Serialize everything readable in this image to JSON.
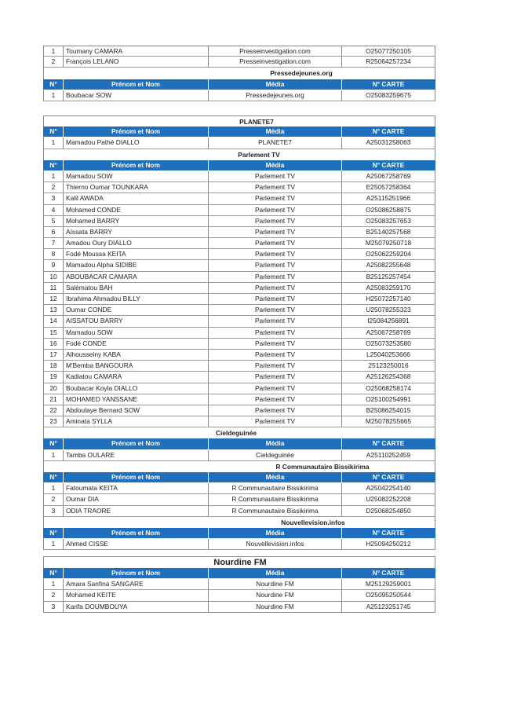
{
  "headers": {
    "no": "N°",
    "name": "Prénom et Nom",
    "media": "Média",
    "card": "N° CARTE"
  },
  "tables": [
    {
      "sections": [
        {
          "title": null,
          "show_header": false,
          "rows": [
            [
              "1",
              "Toumany CAMARA",
              "Presseinvestigation.com",
              "O25077250105"
            ],
            [
              "2",
              "François LELANO",
              "Presseinvestigation.com",
              "R25064257234"
            ]
          ]
        },
        {
          "title": "Pressedejeunes.org",
          "show_header": true,
          "rows": [
            [
              "1",
              "Boubacar SOW",
              "Pressedejeunes.org",
              "O25083259675"
            ]
          ]
        }
      ]
    },
    {
      "sections": [
        {
          "title": "PLANETE7",
          "show_header": true,
          "rows": [
            [
              "1",
              "Mamadou Pathé DIALLO",
              "PLANETE7",
              "A25031258063"
            ]
          ]
        },
        {
          "title": "Parlement TV",
          "show_header": true,
          "rows": [
            [
              "1",
              "Mamadou SOW",
              "Parlement TV",
              "A25067258769"
            ],
            [
              "2",
              "Thierno Oumar TOUNKARA",
              "Parlement TV",
              "E25057258364"
            ],
            [
              "3",
              "Kalil AWADA",
              "Parlement TV",
              "A25115251966"
            ],
            [
              "4",
              "Mohamed CONDE",
              "Parlement TV",
              "O25086258875"
            ],
            [
              "5",
              "Mohamed BARRY",
              "Parlement TV",
              "O25083257653"
            ],
            [
              "6",
              "Aïssata BARRY",
              "Parlement TV",
              "B25140257568"
            ],
            [
              "7",
              "Amadou Oury DIALLO",
              "Parlement TV",
              "M25079250718"
            ],
            [
              "8",
              "Fodé Moussa KEITA",
              "Parlement TV",
              "O25062259204"
            ],
            [
              "9",
              "Mamadou Alpha SIDIBE",
              "Parlement TV",
              "A25082255648"
            ],
            [
              "10",
              "ABOUBACAR CAMARA",
              "Parlement TV",
              "B25125257454"
            ],
            [
              "11",
              "Salématou BAH",
              "Parlement TV",
              "A25083259170"
            ],
            [
              "12",
              "Ibrahima Ahmadou BILLY",
              "Parlement TV",
              "H25072257140"
            ],
            [
              "13",
              "Oumar CONDE",
              "Parlement TV",
              "U25078255323"
            ],
            [
              "14",
              "AISSATOU BARRY",
              "Parlement TV",
              "I25084256891"
            ],
            [
              "15",
              "Mamadou SOW",
              "Parlement TV",
              "A25067258769"
            ],
            [
              "16",
              "Fodé  CONDE",
              "Parlement TV",
              "O25073253580"
            ],
            [
              "17",
              "Alhousseiny KABA",
              "Parlement TV",
              "L25040253666"
            ],
            [
              "18",
              "M'Bemba BANGOURA",
              "Parlement TV",
              "25123250016"
            ],
            [
              "19",
              "Kadiatou CAMARA",
              "Parlement TV",
              "A25126254368"
            ],
            [
              "20",
              "Boubacar Koyla DIALLO",
              "Parlement TV",
              "O25068258174"
            ],
            [
              "21",
              "MOHAMED YANSSANE",
              "Parlement TV",
              "O25100254991"
            ],
            [
              "22",
              "Abdoulaye Bernard SOW",
              "Parlement TV",
              "B25086254015"
            ],
            [
              "23",
              "Aminata SYLLA",
              "Parlement TV",
              "M25078255665"
            ]
          ]
        },
        {
          "title": "Cieldeguinée",
          "show_header": true,
          "rows": [
            [
              "1",
              "Tamba OULARE",
              "Cieldeguinée",
              "A25110252459"
            ]
          ]
        },
        {
          "title": "R Communautaire Bissikirima",
          "show_header": true,
          "rows": [
            [
              "1",
              "Fatoumata KEITA",
              "R Communautaire Bissikirima",
              "A25042254140"
            ],
            [
              "2",
              "Oumar DIA",
              "R Communautaire Bissikirima",
              "U25082252208"
            ],
            [
              "3",
              "ODIA TRAORE",
              "R Communautaire Bissikirima",
              "D25068254850"
            ]
          ]
        },
        {
          "title": "Nouvellevision.infos",
          "show_header": true,
          "rows": [
            [
              "1",
              "Ahmed CISSE",
              "Nouvellevision.infos",
              "H25094250212"
            ]
          ]
        }
      ]
    },
    {
      "sections": [
        {
          "title": "Nourdine FM",
          "show_header": true,
          "big_title": true,
          "rows": [
            [
              "1",
              "Amara Sanfina SANGARE",
              "Nourdine FM",
              "M25129259001"
            ],
            [
              "2",
              "Mohamed KEITE",
              "Nourdine FM",
              "O25095250544"
            ],
            [
              "3",
              "Karifa DOUMBOUYA",
              "Nourdine FM",
              "A25123251745"
            ]
          ]
        }
      ]
    }
  ]
}
